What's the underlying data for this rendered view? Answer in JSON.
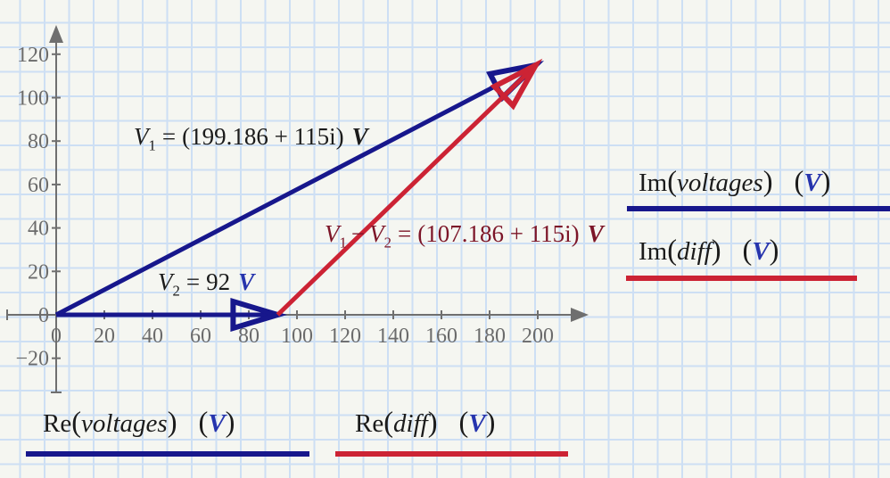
{
  "colors": {
    "navy": "#17178c",
    "red": "#cc2334",
    "dark_red_text": "#7c1528",
    "unit_blue": "#2634ad",
    "axis_gray": "#6f6f6f",
    "text_black": "#1b1b1b",
    "grid_blue": "#cddff4",
    "paper": "#f5f6f1"
  },
  "chart_data": {
    "type": "vector-plot",
    "title": "",
    "xlabel": "",
    "ylabel": "",
    "grid": true,
    "x_axis": {
      "range": [
        -20,
        220
      ],
      "ticks": [
        0,
        20,
        40,
        60,
        80,
        100,
        120,
        140,
        160,
        180,
        200
      ]
    },
    "y_axis": {
      "range": [
        -40,
        135
      ],
      "ticks": [
        -20,
        0,
        20,
        40,
        60,
        80,
        100,
        120
      ]
    },
    "series": [
      {
        "name": "voltages",
        "color_key": "navy",
        "unit": "V",
        "vectors": [
          {
            "id": "v1",
            "from": [
              0,
              0
            ],
            "to": [
              199.186,
              115
            ],
            "label": "V1 = (199.186 + 115i) V"
          },
          {
            "id": "v2",
            "from": [
              0,
              0
            ],
            "to": [
              92,
              0
            ],
            "label": "V2 = 92 V"
          }
        ]
      },
      {
        "name": "diff",
        "color_key": "red",
        "unit": "V",
        "vectors": [
          {
            "id": "diff",
            "from": [
              92,
              0
            ],
            "to": [
              199.186,
              115
            ],
            "label": "V1 - V2 = (107.186 + 115i) V"
          }
        ]
      }
    ]
  },
  "annotations": {
    "v1": {
      "var": "V",
      "sub": "1",
      "eq": "=",
      "value": "(199.186 + 115i)",
      "unit": "V"
    },
    "v2": {
      "var": "V",
      "sub": "2",
      "eq": "=",
      "value": "92",
      "unit": "V"
    },
    "diff": {
      "var1": "V",
      "sub1": "1",
      "minus": "−",
      "var2": "V",
      "sub2": "2",
      "eq": "=",
      "value": "(107.186 + 115i)",
      "unit": "V"
    }
  },
  "legend": {
    "punct_open": "(",
    "punct_close": ")",
    "bottom": [
      {
        "fn": "Re",
        "arg": "voltages",
        "unit": "V",
        "color_key": "navy"
      },
      {
        "fn": "Re",
        "arg": "diff",
        "unit": "V",
        "color_key": "red"
      }
    ],
    "right": [
      {
        "fn": "Im",
        "arg": "voltages",
        "unit": "V",
        "color_key": "navy"
      },
      {
        "fn": "Im",
        "arg": "diff",
        "unit": "V",
        "color_key": "red"
      }
    ]
  }
}
